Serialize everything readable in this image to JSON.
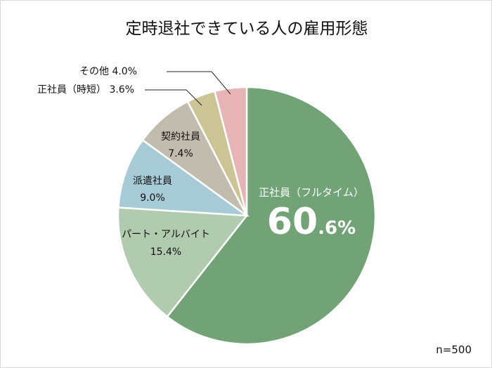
{
  "chart_data": {
    "type": "pie",
    "title": "定時退社できている人の雇用形態",
    "categories": [
      "正社員（フルタイム）",
      "パート・アルバイト",
      "派遣社員",
      "契約社員",
      "正社員（時短）",
      "その他"
    ],
    "values": [
      60.6,
      15.4,
      9.0,
      7.4,
      3.6,
      4.0
    ],
    "colors": [
      "#71a377",
      "#b0cbae",
      "#a6cbd6",
      "#c2bcae",
      "#cdc495",
      "#e8b5b7"
    ],
    "unit": "%",
    "sample_size": "n=500",
    "start_angle_deg": 0,
    "direction": "clockwise"
  },
  "labels": {
    "title": "定時退社できている人の雇用形態",
    "fulltime_name": "正社員（フルタイム）",
    "fulltime_big": "60",
    "fulltime_small": ".6%",
    "part_name": "パート・アルバイト",
    "part_value": "15.4%",
    "dispatch_name": "派遣社員",
    "dispatch_value": "9.0%",
    "contract_name": "契約社員",
    "contract_value": "7.4%",
    "shorttime": "正社員（時短） 3.6%",
    "other": "その他 4.0%",
    "n": "n=500"
  }
}
